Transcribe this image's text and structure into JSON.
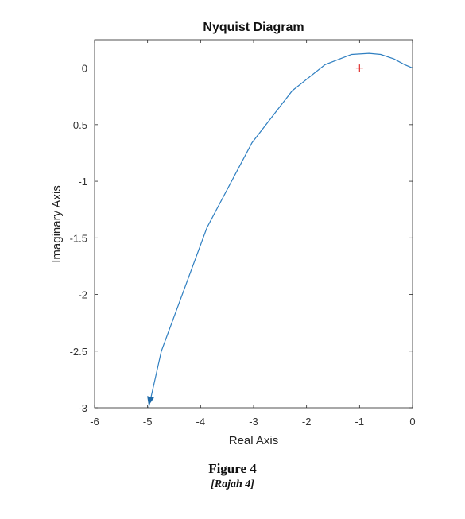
{
  "chart_data": {
    "type": "line",
    "title": "Nyquist Diagram",
    "xlabel": "Real Axis",
    "ylabel": "Imaginary Axis",
    "xlim": [
      -6,
      0
    ],
    "ylim": [
      -3,
      0.25
    ],
    "xticks": [
      "-6",
      "-5",
      "-4",
      "-3",
      "-2",
      "-1",
      "0"
    ],
    "yticks": [
      "0",
      "-0.5",
      "-1",
      "-1.5",
      "-2",
      "-2.5",
      "-3"
    ],
    "grid": false,
    "series": [
      {
        "x": [
          -4.98,
          -4.74,
          -3.88,
          -3.03,
          -2.27,
          -1.65,
          -1.15,
          -0.82,
          -0.6,
          -0.35,
          -0.15,
          0.0
        ],
        "y": [
          -3.0,
          -2.5,
          -1.41,
          -0.66,
          -0.2,
          0.03,
          0.12,
          0.13,
          0.12,
          0.08,
          0.03,
          0.0
        ],
        "color": "#2f7fc1"
      }
    ],
    "critical_point": {
      "x": -1,
      "y": 0,
      "color": "#e0302f"
    },
    "reference_line": {
      "y": 0
    }
  },
  "caption": {
    "title": "Figure 4",
    "subtitle": "[Rajah 4]"
  }
}
